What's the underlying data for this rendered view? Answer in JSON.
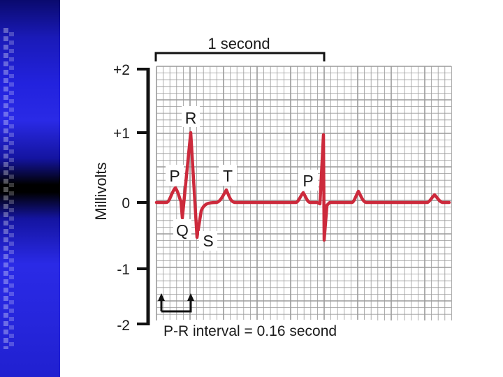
{
  "title_scale": "1 second",
  "axis": {
    "label": "Millivolts",
    "ticks": [
      "+2",
      "+1",
      "0",
      "-1",
      "-2"
    ]
  },
  "waves": {
    "p1": "P",
    "q": "Q",
    "r": "R",
    "s": "S",
    "t": "T",
    "p2": "P"
  },
  "caption": "P-R interval = 0.16 second",
  "colors": {
    "trace": "#cc2a3c",
    "grid": "#9a9a9a",
    "sidebar": "#2a2ae6"
  }
}
